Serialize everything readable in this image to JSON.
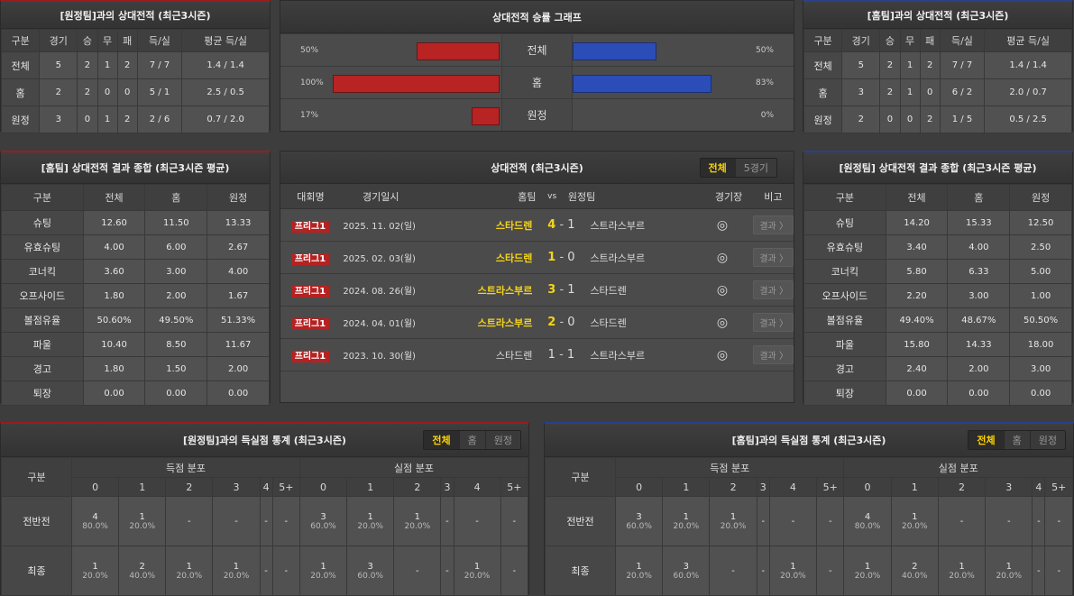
{
  "h2h_away": {
    "title": "[원정팀]과의 상대전적 (최근3시즌)",
    "headers": [
      "구분",
      "경기",
      "승",
      "무",
      "패",
      "득/실",
      "평균 득/실"
    ],
    "rows": [
      [
        "전체",
        "5",
        "2",
        "1",
        "2",
        "7 / 7",
        "1.4 / 1.4"
      ],
      [
        "홈",
        "2",
        "2",
        "0",
        "0",
        "5 / 1",
        "2.5 / 0.5"
      ],
      [
        "원정",
        "3",
        "0",
        "1",
        "2",
        "2 / 6",
        "0.7 / 2.0"
      ]
    ]
  },
  "h2h_home": {
    "title": "[홈팀]과의 상대전적 (최근3시즌)",
    "headers": [
      "구분",
      "경기",
      "승",
      "무",
      "패",
      "득/실",
      "평균 득/실"
    ],
    "rows": [
      [
        "전체",
        "5",
        "2",
        "1",
        "2",
        "7 / 7",
        "1.4 / 1.4"
      ],
      [
        "홈",
        "3",
        "2",
        "1",
        "0",
        "6 / 2",
        "2.0 / 0.7"
      ],
      [
        "원정",
        "2",
        "0",
        "0",
        "2",
        "1 / 5",
        "0.5 / 2.5"
      ]
    ]
  },
  "winrate": {
    "title": "상대전적 승률 그래프",
    "colors": {
      "left": "#b82323",
      "right": "#2a4db8"
    },
    "rows": [
      {
        "label": "전체",
        "left": 50,
        "right": 50,
        "left_text": "50%",
        "right_text": "50%"
      },
      {
        "label": "홈",
        "left": 100,
        "right": 83,
        "left_text": "100%",
        "right_text": "83%"
      },
      {
        "label": "원정",
        "left": 17,
        "right": 0,
        "left_text": "17%",
        "right_text": "0%"
      }
    ]
  },
  "summary_home": {
    "title": "[홈팀] 상대전적 결과 종합 (최근3시즌 평균)",
    "headers": [
      "구분",
      "전체",
      "홈",
      "원정"
    ],
    "rows": [
      [
        "슈팅",
        "12.60",
        "11.50",
        "13.33"
      ],
      [
        "유효슈팅",
        "4.00",
        "6.00",
        "2.67"
      ],
      [
        "코너킥",
        "3.60",
        "3.00",
        "4.00"
      ],
      [
        "오프사이드",
        "1.80",
        "2.00",
        "1.67"
      ],
      [
        "볼점유율",
        "50.60%",
        "49.50%",
        "51.33%"
      ],
      [
        "파울",
        "10.40",
        "8.50",
        "11.67"
      ],
      [
        "경고",
        "1.80",
        "1.50",
        "2.00"
      ],
      [
        "퇴장",
        "0.00",
        "0.00",
        "0.00"
      ]
    ]
  },
  "summary_away": {
    "title": "[원정팀] 상대전적 결과 종합 (최근3시즌 평균)",
    "headers": [
      "구분",
      "전체",
      "홈",
      "원정"
    ],
    "rows": [
      [
        "슈팅",
        "14.20",
        "15.33",
        "12.50"
      ],
      [
        "유효슈팅",
        "3.40",
        "4.00",
        "2.50"
      ],
      [
        "코너킥",
        "5.80",
        "6.33",
        "5.00"
      ],
      [
        "오프사이드",
        "2.20",
        "3.00",
        "1.00"
      ],
      [
        "볼점유율",
        "49.40%",
        "48.67%",
        "50.50%"
      ],
      [
        "파울",
        "15.80",
        "14.33",
        "18.00"
      ],
      [
        "경고",
        "2.40",
        "2.00",
        "3.00"
      ],
      [
        "퇴장",
        "0.00",
        "0.00",
        "0.00"
      ]
    ]
  },
  "matches": {
    "title": "상대전적 (최근3시즌)",
    "toggle": [
      "전체",
      "5경기"
    ],
    "headers": {
      "league": "대회명",
      "date": "경기일시",
      "home": "홈팀",
      "vs": "vs",
      "away": "원정팀",
      "venue": "경기장",
      "note": "비고"
    },
    "result_label": "결과 〉",
    "venue_icon": "stadium-icon",
    "rows": [
      {
        "league": "프리그1",
        "date": "2025. 11. 02(일)",
        "home": "스타드렌",
        "hs": "4",
        "as": "1",
        "away": "스트라스부르",
        "home_win": true
      },
      {
        "league": "프리그1",
        "date": "2025. 02. 03(월)",
        "home": "스타드렌",
        "hs": "1",
        "as": "0",
        "away": "스트라스부르",
        "home_win": true
      },
      {
        "league": "프리그1",
        "date": "2024. 08. 26(월)",
        "home": "스트라스부르",
        "hs": "3",
        "as": "1",
        "away": "스타드렌",
        "home_win": true
      },
      {
        "league": "프리그1",
        "date": "2024. 04. 01(월)",
        "home": "스트라스부르",
        "hs": "2",
        "as": "0",
        "away": "스타드렌",
        "home_win": true
      },
      {
        "league": "프리그1",
        "date": "2023. 10. 30(월)",
        "home": "스타드렌",
        "hs": "1",
        "as": "1",
        "away": "스트라스부르",
        "home_win": false
      }
    ]
  },
  "goals_away": {
    "title": "[원정팀]과의 득실점 통계 (최근3시즌)",
    "toggle": [
      "전체",
      "홈",
      "원정"
    ],
    "label_col": "구분",
    "groups": [
      "득점 분포",
      "실점 분포"
    ],
    "cols": [
      "0",
      "1",
      "2",
      "3",
      "4",
      "5+"
    ],
    "rows": [
      {
        "label": "전반전",
        "cells": [
          [
            "4",
            "80.0%"
          ],
          [
            "1",
            "20.0%"
          ],
          "-",
          "-",
          "-",
          "-",
          [
            "3",
            "60.0%"
          ],
          [
            "1",
            "20.0%"
          ],
          [
            "1",
            "20.0%"
          ],
          "-",
          "-",
          "-"
        ]
      },
      {
        "label": "최종",
        "cells": [
          [
            "1",
            "20.0%"
          ],
          [
            "2",
            "40.0%"
          ],
          [
            "1",
            "20.0%"
          ],
          [
            "1",
            "20.0%"
          ],
          "-",
          "-",
          [
            "1",
            "20.0%"
          ],
          [
            "3",
            "60.0%"
          ],
          "-",
          "-",
          [
            "1",
            "20.0%"
          ],
          "-"
        ]
      }
    ]
  },
  "goals_home": {
    "title": "[홈팀]과의 득실점 통계 (최근3시즌)",
    "toggle": [
      "전체",
      "홈",
      "원정"
    ],
    "label_col": "구분",
    "groups": [
      "득점 분포",
      "실점 분포"
    ],
    "cols": [
      "0",
      "1",
      "2",
      "3",
      "4",
      "5+"
    ],
    "rows": [
      {
        "label": "전반전",
        "cells": [
          [
            "3",
            "60.0%"
          ],
          [
            "1",
            "20.0%"
          ],
          [
            "1",
            "20.0%"
          ],
          "-",
          "-",
          "-",
          [
            "4",
            "80.0%"
          ],
          [
            "1",
            "20.0%"
          ],
          "-",
          "-",
          "-",
          "-"
        ]
      },
      {
        "label": "최종",
        "cells": [
          [
            "1",
            "20.0%"
          ],
          [
            "3",
            "60.0%"
          ],
          "-",
          "-",
          [
            "1",
            "20.0%"
          ],
          "-",
          [
            "1",
            "20.0%"
          ],
          [
            "2",
            "40.0%"
          ],
          [
            "1",
            "20.0%"
          ],
          [
            "1",
            "20.0%"
          ],
          "-",
          "-"
        ]
      }
    ]
  }
}
